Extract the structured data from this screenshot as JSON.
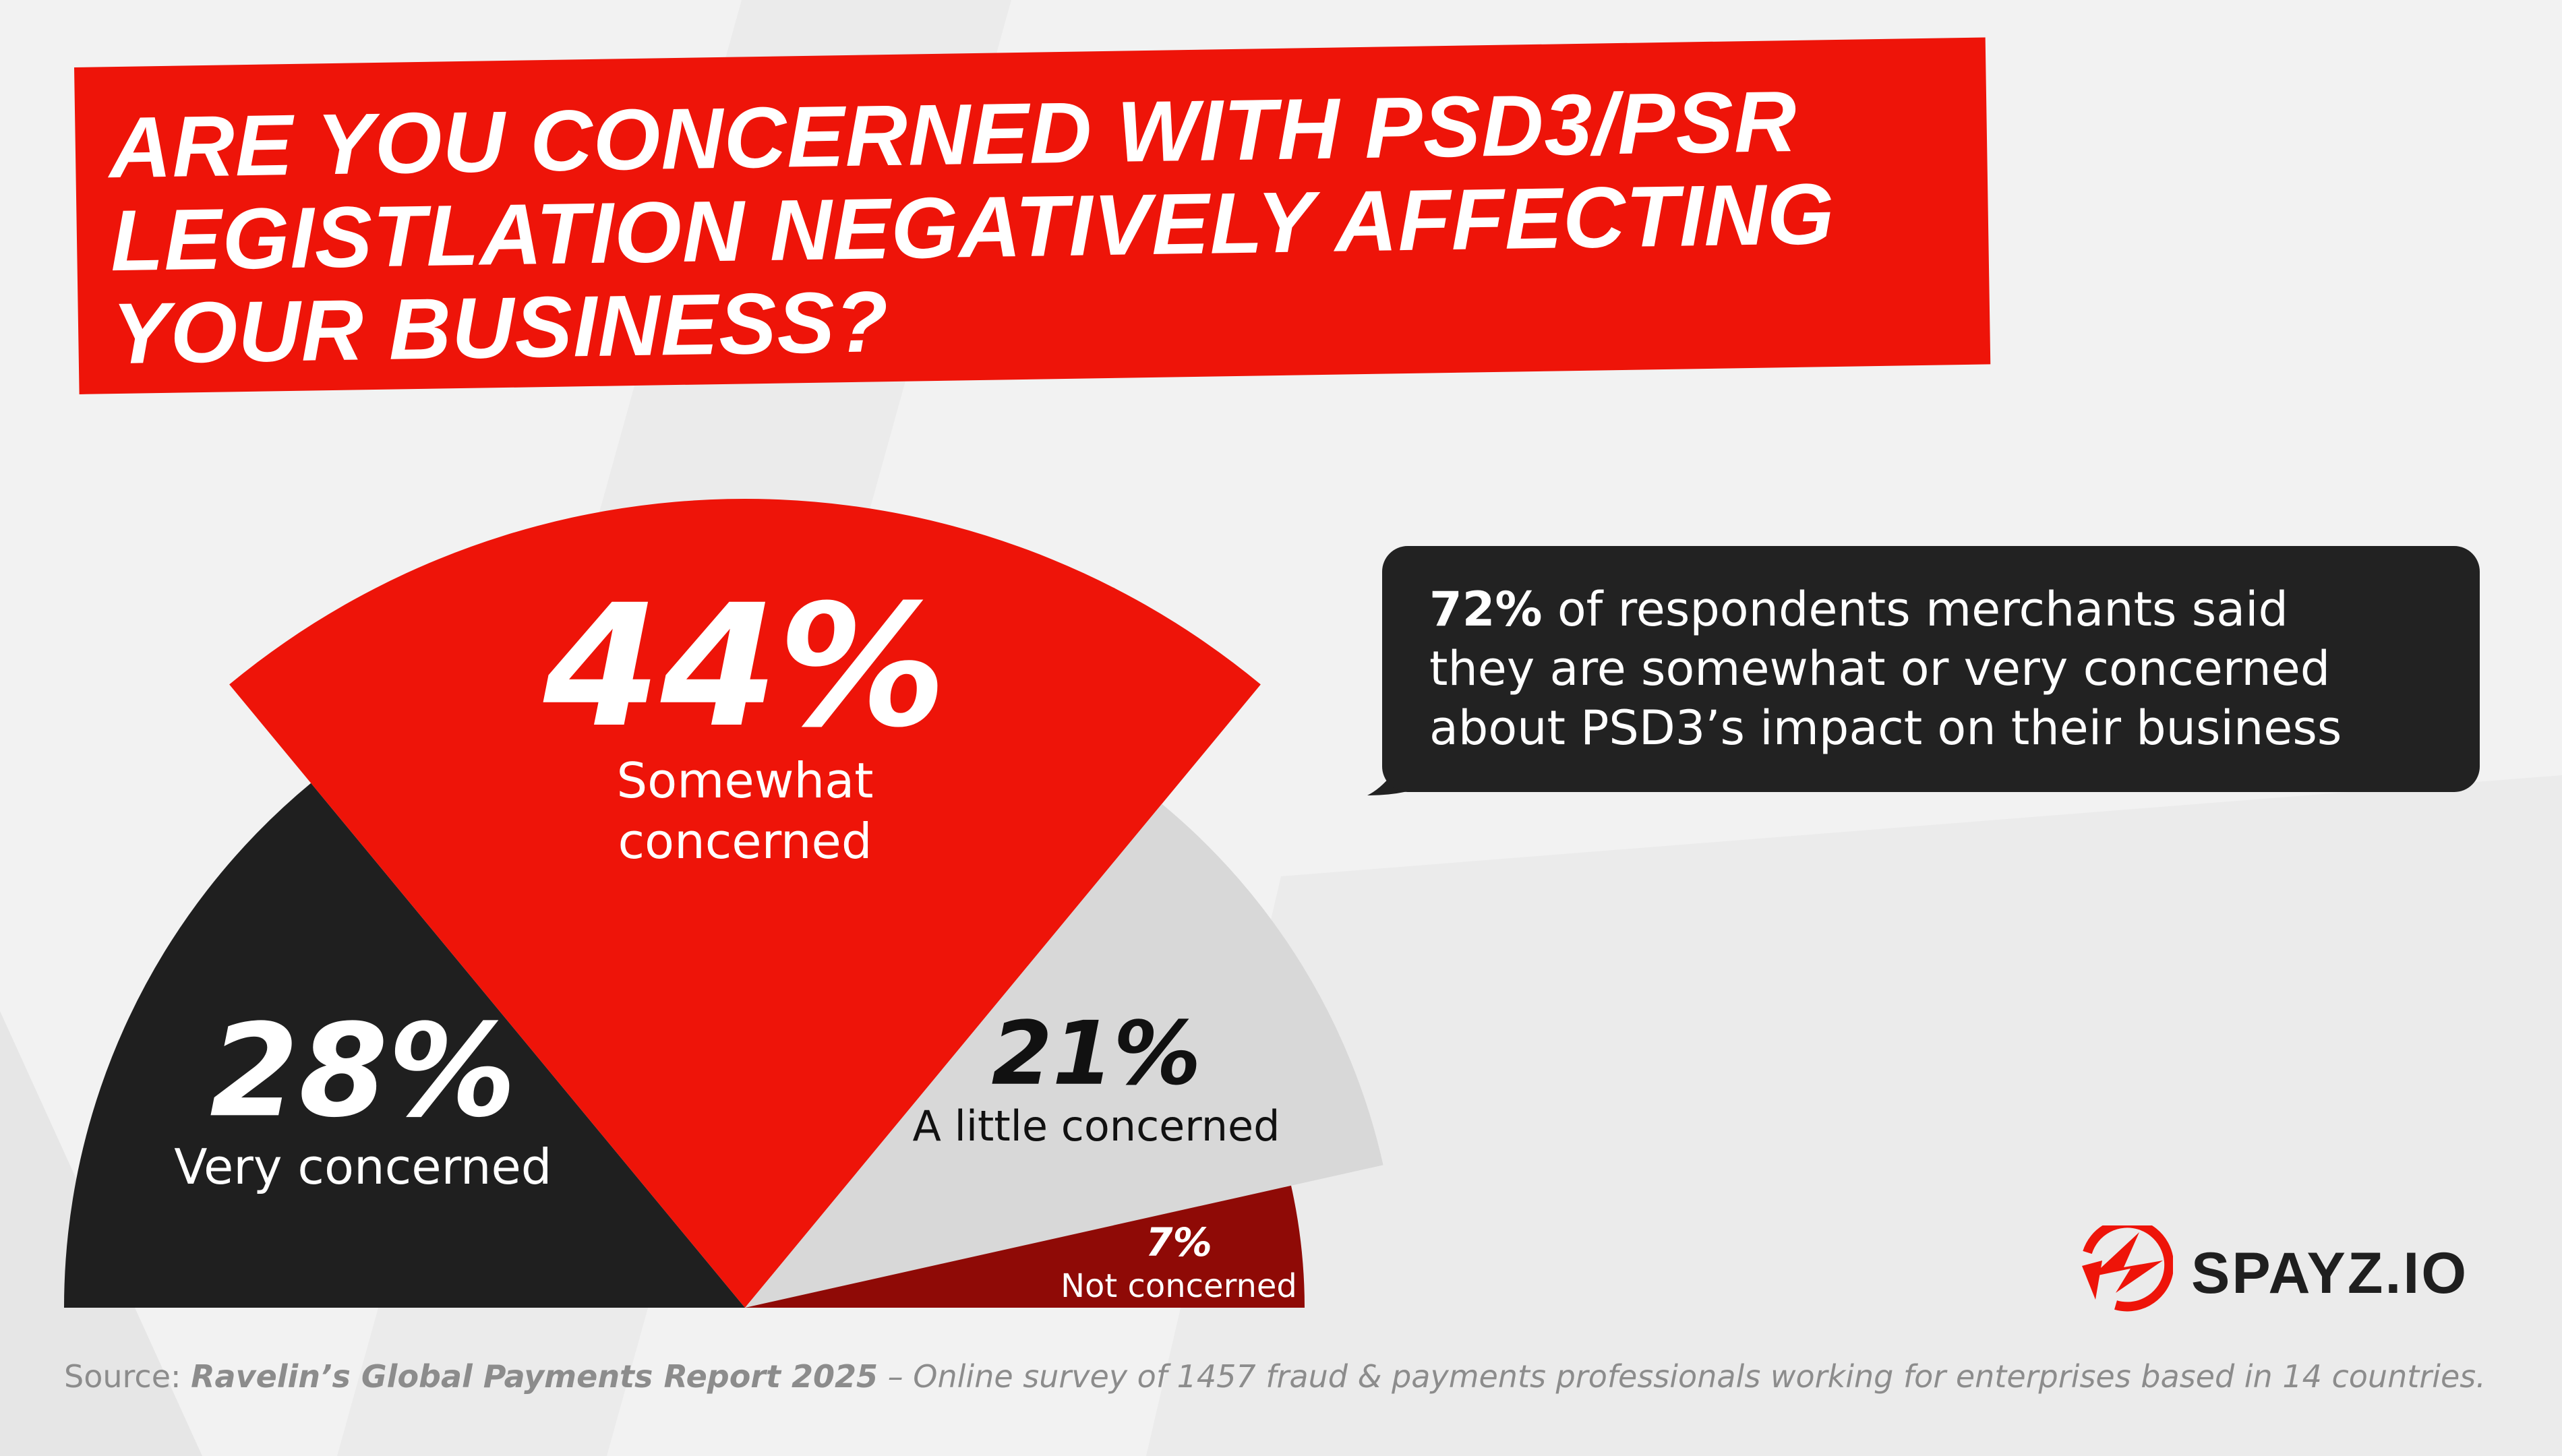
{
  "title": {
    "lines": [
      "ARE YOU CONCERNED WITH PSD3/PSR",
      "LEGISTLATION NEGATIVELY AFFECTING",
      "YOUR BUSINESS?"
    ]
  },
  "chart_data": {
    "type": "pie",
    "title": "ARE YOU CONCERNED WITH PSD3/PSR LEGISTLATION NEGATIVELY AFFECTING YOUR BUSINESS?",
    "unit": "%",
    "slices": [
      {
        "label": "Very concerned",
        "value": 28,
        "display": "28%",
        "color": "#1f1f1f",
        "label_color": "#ffffff"
      },
      {
        "label": "Somewhat concerned",
        "value": 44,
        "display": "44%",
        "color": "#ee1409",
        "label_color": "#ffffff"
      },
      {
        "label": "A little concerned",
        "value": 21,
        "display": "21%",
        "color": "#d8d8d8",
        "label_color": "#111111"
      },
      {
        "label": "Not concerned",
        "value": 7,
        "display": "7%",
        "color": "#8f0a06",
        "label_color": "#ffffff"
      }
    ]
  },
  "callout": {
    "highlight": "72%",
    "line1_rest": " of respondents merchants said",
    "line2": "they are somewhat or very concerned",
    "line3": "about PSD3’s impact on their business"
  },
  "brand": {
    "name": "SPAYZ.IO",
    "accent": "#ee1409"
  },
  "source": {
    "label": "Source: ",
    "reference": "Ravelin’s Global Payments Report 2025",
    "description": " – Online survey of 1457 fraud & payments professionals working for enterprises based in 14 countries."
  }
}
